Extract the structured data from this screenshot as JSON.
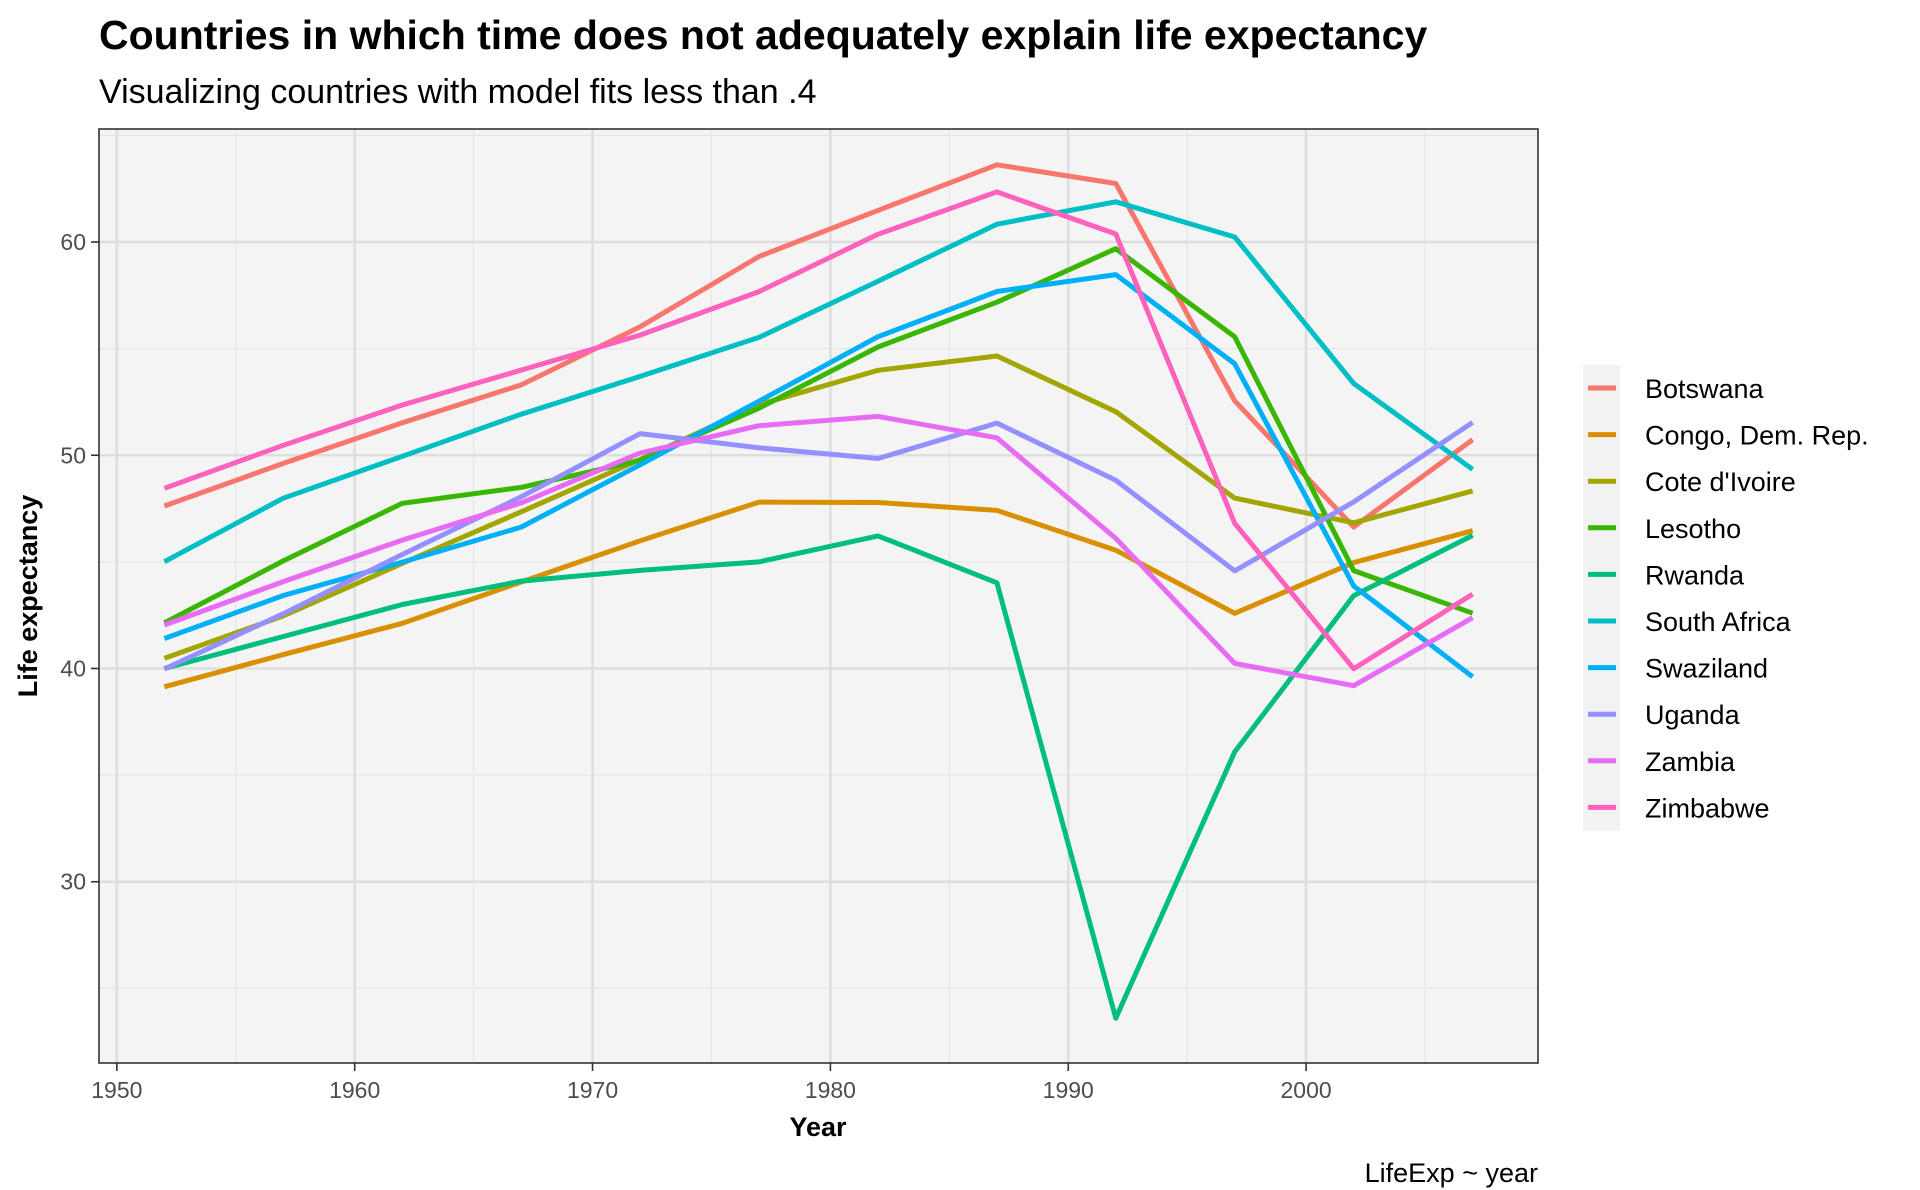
{
  "chart_data": {
    "type": "line",
    "title": "Countries in which time does not adequately explain life expectancy",
    "subtitle": "Visualizing countries with model fits less than .4",
    "xlabel": "Year",
    "ylabel": "Life expectancy",
    "caption": "LifeExp ~ year",
    "xlim": [
      1949.25,
      2009.75
    ],
    "ylim": [
      21.5,
      65.3
    ],
    "x_ticks": [
      1950,
      1960,
      1970,
      1980,
      1990,
      2000
    ],
    "x_tick_labels": [
      "1950",
      "1960",
      "1970",
      "1980",
      "1990",
      "2000"
    ],
    "x_minor": [
      1955,
      1965,
      1975,
      1985,
      1995,
      2005
    ],
    "y_ticks": [
      30,
      40,
      50,
      60
    ],
    "y_tick_labels": [
      "30",
      "40",
      "50",
      "60"
    ],
    "y_minor": [
      25,
      35,
      45,
      55,
      65
    ],
    "grid": true,
    "legend_position": "right",
    "x": [
      1952,
      1957,
      1962,
      1967,
      1972,
      1977,
      1982,
      1987,
      1992,
      1997,
      2002,
      2007
    ],
    "series": [
      {
        "name": "Botswana",
        "color": "#F8766D",
        "values": [
          47.622,
          49.618,
          51.52,
          53.298,
          56.024,
          59.319,
          61.484,
          63.622,
          62.745,
          52.556,
          46.634,
          50.728
        ]
      },
      {
        "name": "Congo, Dem. Rep.",
        "color": "#D89000",
        "values": [
          39.143,
          40.652,
          42.122,
          44.056,
          45.989,
          47.804,
          47.784,
          47.412,
          45.548,
          42.587,
          44.966,
          46.462
        ]
      },
      {
        "name": "Cote d'Ivoire",
        "color": "#A3A500",
        "values": [
          40.477,
          42.469,
          44.93,
          47.35,
          49.801,
          52.374,
          53.983,
          54.655,
          52.044,
          47.991,
          46.832,
          48.328
        ]
      },
      {
        "name": "Lesotho",
        "color": "#39B600",
        "values": [
          42.138,
          45.047,
          47.747,
          48.492,
          49.767,
          52.208,
          55.078,
          57.18,
          59.685,
          55.558,
          44.593,
          42.592
        ]
      },
      {
        "name": "Rwanda",
        "color": "#00BF7D",
        "values": [
          40.0,
          41.5,
          43.0,
          44.1,
          44.6,
          45.0,
          46.218,
          44.02,
          23.599,
          36.087,
          43.413,
          46.242
        ]
      },
      {
        "name": "South Africa",
        "color": "#00BFC4",
        "values": [
          45.009,
          47.985,
          49.951,
          51.927,
          53.696,
          55.527,
          58.161,
          60.834,
          61.888,
          60.236,
          53.365,
          49.339
        ]
      },
      {
        "name": "Swaziland",
        "color": "#00B0F6",
        "values": [
          41.407,
          43.424,
          44.992,
          46.633,
          49.552,
          52.537,
          55.561,
          57.678,
          58.474,
          54.289,
          43.869,
          39.613
        ]
      },
      {
        "name": "Uganda",
        "color": "#9590FF",
        "values": [
          39.978,
          42.571,
          45.344,
          48.051,
          51.016,
          50.35,
          49.849,
          51.509,
          48.825,
          44.578,
          47.813,
          51.542
        ]
      },
      {
        "name": "Zambia",
        "color": "#E76BF3",
        "values": [
          42.038,
          44.077,
          46.023,
          47.768,
          50.107,
          51.386,
          51.821,
          50.821,
          46.1,
          40.238,
          39.193,
          42.384
        ]
      },
      {
        "name": "Zimbabwe",
        "color": "#FF62BC",
        "values": [
          48.451,
          50.469,
          52.358,
          53.995,
          55.635,
          57.674,
          60.363,
          62.351,
          60.377,
          46.809,
          39.989,
          43.487
        ]
      }
    ]
  }
}
